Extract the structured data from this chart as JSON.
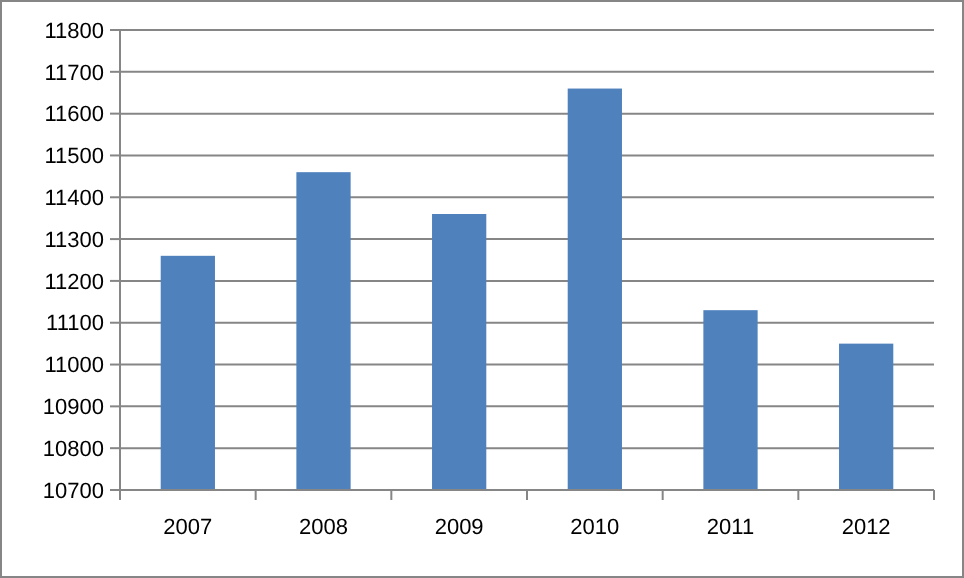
{
  "chart_data": {
    "type": "bar",
    "categories": [
      "2007",
      "2008",
      "2009",
      "2010",
      "2011",
      "2012"
    ],
    "values": [
      11260,
      11460,
      11360,
      11660,
      11130,
      11050
    ],
    "color": "#4f81bd",
    "ylim": [
      10700,
      11800
    ],
    "yticks": [
      10700,
      10800,
      10900,
      11000,
      11100,
      11200,
      11300,
      11400,
      11500,
      11600,
      11700,
      11800
    ],
    "grid": "y"
  }
}
